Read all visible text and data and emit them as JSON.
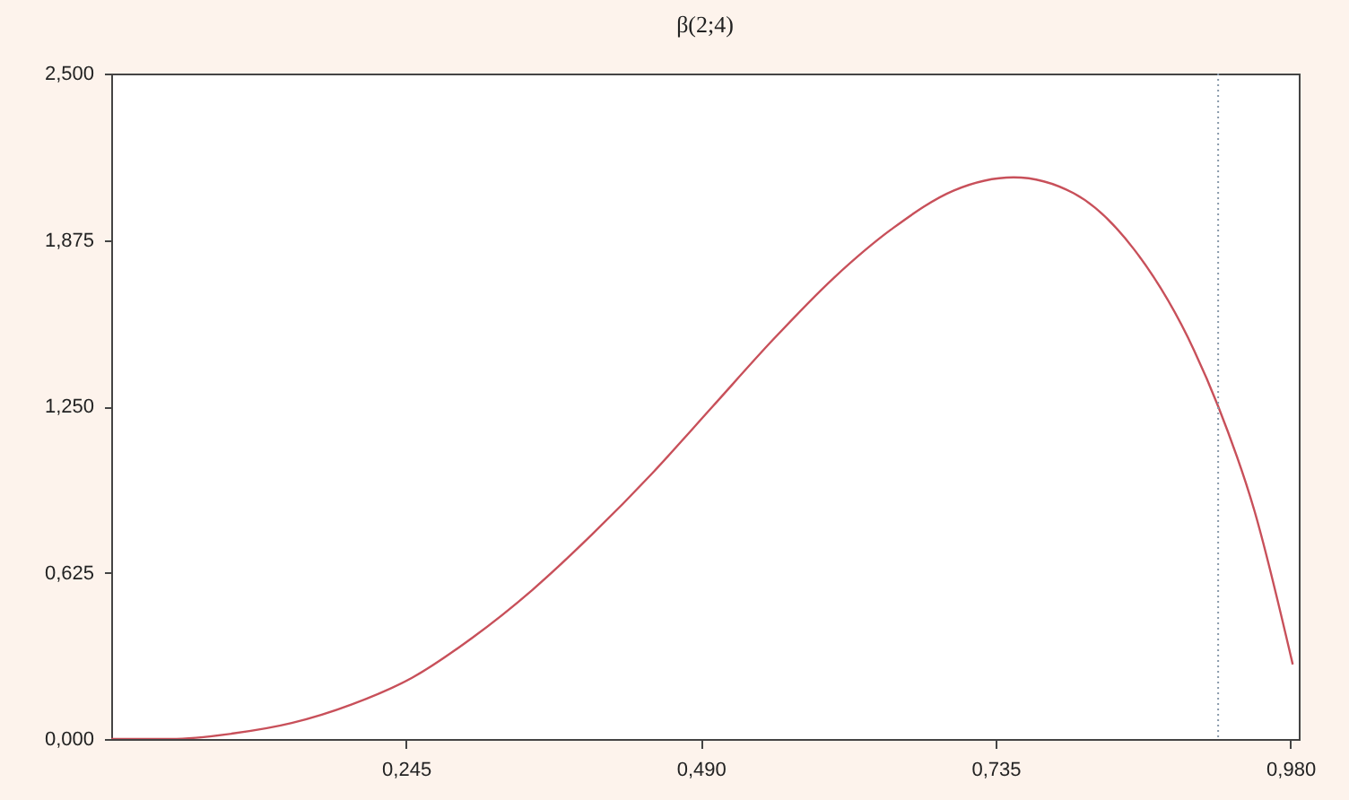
{
  "chart_data": {
    "type": "line",
    "title": "β(2;4)",
    "x": [
      0,
      0.05,
      0.1,
      0.15,
      0.2,
      0.25,
      0.3,
      0.35,
      0.4,
      0.45,
      0.5,
      0.55,
      0.6,
      0.65,
      0.7,
      0.75,
      0.8,
      0.85,
      0.9,
      0.92,
      0.95,
      0.982
    ],
    "series": [
      {
        "color": "#c8505a",
        "values": [
          0,
          0,
          0.02,
          0.06,
          0.13,
          0.23,
          0.38,
          0.56,
          0.77,
          1.0,
          1.25,
          1.5,
          1.73,
          1.92,
          2.06,
          2.11,
          2.05,
          1.84,
          1.46,
          1.25,
          0.86,
          0.28
        ]
      }
    ],
    "xlim": [
      0,
      0.987
    ],
    "ylim": [
      0,
      2.5
    ],
    "xticks": [
      {
        "value": 0.245,
        "label": "0,245"
      },
      {
        "value": 0.49,
        "label": "0,490"
      },
      {
        "value": 0.735,
        "label": "0,735"
      },
      {
        "value": 0.98,
        "label": "0,980"
      }
    ],
    "yticks": [
      {
        "value": 0,
        "label": "0,000"
      },
      {
        "value": 0.625,
        "label": "0,625"
      },
      {
        "value": 1.25,
        "label": "1,250"
      },
      {
        "value": 1.875,
        "label": "1,875"
      },
      {
        "value": 2.5,
        "label": "2,500"
      }
    ],
    "ref_lines": [
      {
        "axis": "x",
        "value": 0.92,
        "color": "#8899aa",
        "line_style": "dotted"
      }
    ],
    "grid": false,
    "marker": "none",
    "line_style": "solid"
  }
}
